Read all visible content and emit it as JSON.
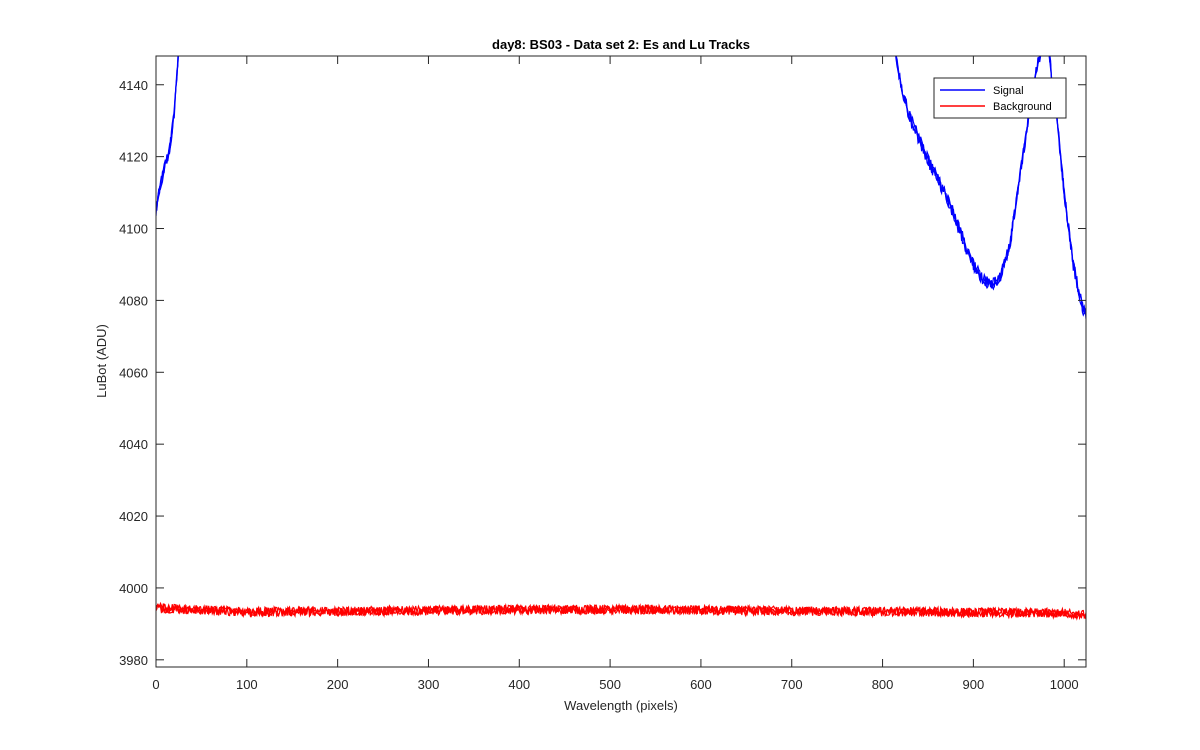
{
  "chart_data": {
    "type": "line",
    "title": "day8: BS03 - Data set 2: Es and Lu Tracks",
    "xlabel": "Wavelength (pixels)",
    "ylabel": "LuBot (ADU)",
    "xlim": [
      0,
      1024
    ],
    "ylim": [
      3978,
      4148
    ],
    "xticks": [
      0,
      100,
      200,
      300,
      400,
      500,
      600,
      700,
      800,
      900,
      1000
    ],
    "yticks": [
      3980,
      4000,
      4020,
      4040,
      4060,
      4080,
      4100,
      4120,
      4140
    ],
    "grid": false,
    "legend_position": "top-right",
    "series": [
      {
        "name": "Signal",
        "color": "#0000ff",
        "x": [
          0,
          5,
          10,
          15,
          20,
          25,
          30,
          800,
          810,
          820,
          830,
          840,
          850,
          860,
          870,
          880,
          890,
          900,
          910,
          920,
          930,
          940,
          950,
          960,
          970,
          975,
          980,
          990,
          1000,
          1010,
          1020,
          1024
        ],
        "y": [
          4105,
          4112,
          4118,
          4122,
          4132,
          4150,
          4175,
          4170,
          4156,
          4140,
          4131,
          4125,
          4119,
          4114,
          4109,
          4103,
          4096,
          4090,
          4086,
          4084,
          4087,
          4095,
          4112,
          4130,
          4145,
          4150,
          4155,
          4135,
          4110,
          4090,
          4078,
          4076
        ]
      },
      {
        "name": "Background",
        "color": "#ff0000",
        "x": [
          0,
          100,
          200,
          300,
          400,
          500,
          600,
          700,
          800,
          900,
          1000,
          1024
        ],
        "y": [
          3994.5,
          3993.3,
          3993.5,
          3993.7,
          3994,
          3994,
          3993.8,
          3993.6,
          3993.4,
          3993.2,
          3993,
          3992.5
        ]
      }
    ]
  }
}
